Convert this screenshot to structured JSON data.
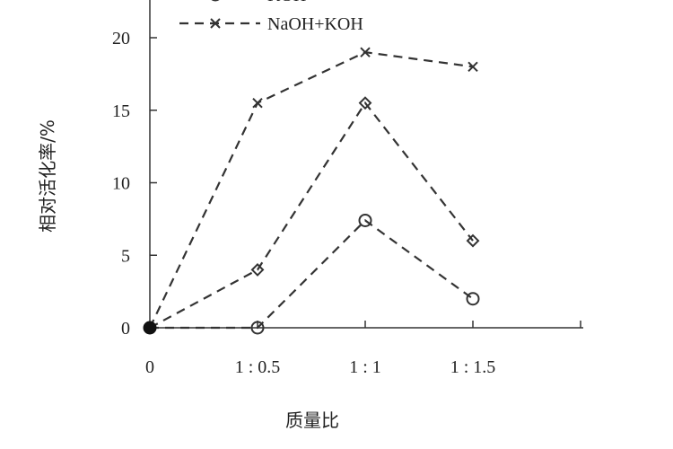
{
  "chart_data": {
    "type": "line",
    "xlabel": "质量比",
    "ylabel": "相对活化率/%",
    "categories": [
      "0",
      "1 : 0.5",
      "1 : 1",
      "1 : 1.5"
    ],
    "ylim": [
      0,
      20
    ],
    "yticks": [
      "0",
      "5",
      "10",
      "15",
      "20"
    ],
    "grid": false,
    "legend_position": "top-left",
    "series": [
      {
        "name": "KOH",
        "marker": "circle",
        "line": "dashed",
        "color": "#333333",
        "values": [
          0,
          0,
          7.4,
          2
        ]
      },
      {
        "name": "",
        "marker": "diamond",
        "line": "dashed",
        "color": "#333333",
        "values": [
          0,
          4,
          15.5,
          6
        ]
      },
      {
        "name": "NaOH+KOH",
        "marker": "x",
        "line": "dashed",
        "color": "#333333",
        "values": [
          0,
          15.5,
          19,
          18
        ]
      }
    ]
  }
}
